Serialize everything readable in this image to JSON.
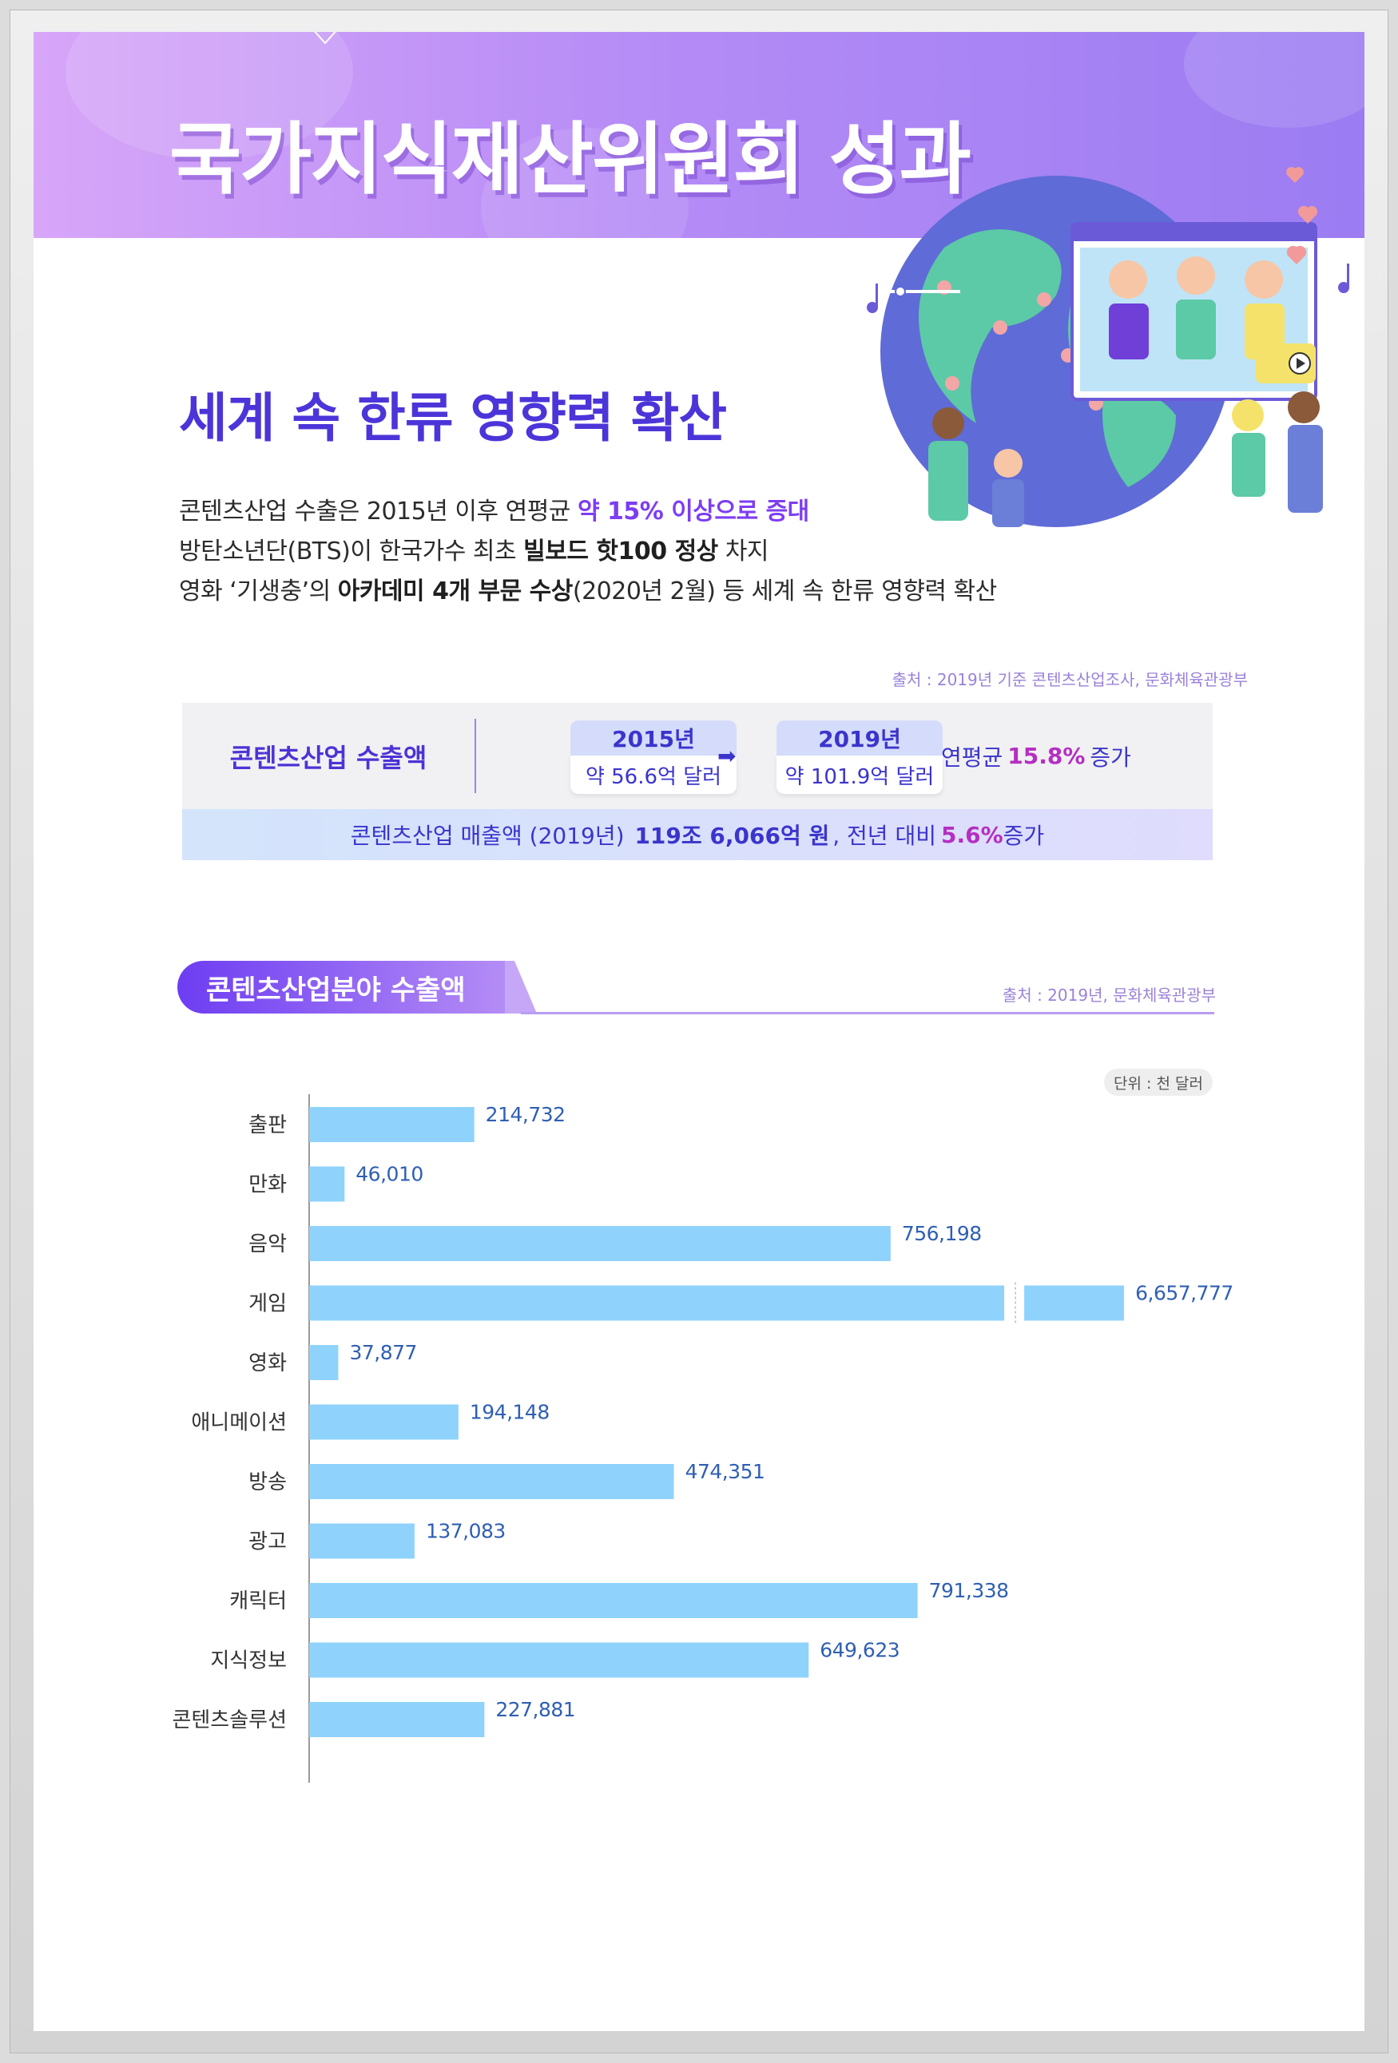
{
  "header": {
    "title": "국가지식재산위원회 성과"
  },
  "section1": {
    "title": "세계 속 한류 영향력 확산",
    "line1": {
      "text": "콘텐츠산업 수출은 2015년 이후 연평균 ",
      "highlight": "약 15% 이상으로 증대"
    },
    "line2": {
      "pre": "방탄소년단(BTS)이 한국가수 최초 ",
      "bold": "빌보드 핫100 정상",
      "post": " 차지"
    },
    "line3": {
      "pre": "영화 ‘기생충’의 ",
      "bold": "아카데미 4개 부문 수상",
      "post": "(2020년 2월) 등 세계 속 한류 영향력 확산"
    },
    "source": "출처 : 2019년 기준 콘텐츠산업조사, 문화체육관광부"
  },
  "export_box": {
    "label": "콘텐츠산업 수출액",
    "year_a": {
      "year": "2015년",
      "value": "약 56.6억 달러"
    },
    "year_b": {
      "year": "2019년",
      "value": "약 101.9억 달러"
    },
    "cagr_pre": "연평균",
    "cagr_pct": "15.8%",
    "cagr_post": "증가",
    "sales_pre": "콘텐츠산업 매출액 (2019년)",
    "sales_bold": "119조 6,066억 원",
    "sales_mid": ", 전년 대비",
    "sales_pct": "5.6%",
    "sales_post": "증가"
  },
  "section2": {
    "tag": "콘텐츠산업분야 수출액",
    "source": "출처 : 2019년, 문화체육관광부",
    "unit": "단위 : 천 달러"
  },
  "colors": {
    "bar": "#8fd3fc",
    "accent": "#4b35d9",
    "highlight": "#b52fc2"
  },
  "chart_data": {
    "type": "bar",
    "orientation": "horizontal",
    "axis_break": true,
    "categories": [
      "출판",
      "만화",
      "음악",
      "게임",
      "영화",
      "애니메이션",
      "방송",
      "광고",
      "캐릭터",
      "지식정보",
      "콘텐츠솔루션"
    ],
    "values": [
      214732,
      46010,
      756198,
      6657777,
      37877,
      194148,
      474351,
      137083,
      791338,
      649623,
      227881
    ],
    "value_labels": [
      "214,732",
      "46,010",
      "756,198",
      "6,657,777",
      "37,877",
      "194,148",
      "474,351",
      "137,083",
      "791,338",
      "649,623",
      "227,881"
    ],
    "unit": "천 달러"
  }
}
